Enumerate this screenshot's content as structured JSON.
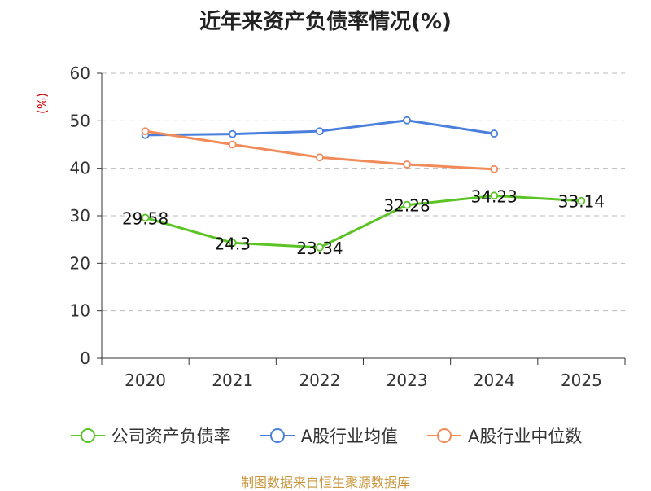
{
  "title": "近年来资产负债率情况(%)",
  "footer": "制图数据来自恒生聚源数据库",
  "chart_data": {
    "type": "line",
    "title": "近年来资产负债率情况(%)",
    "ylabel": "(%)",
    "xlabel": "",
    "ylim": [
      0,
      60
    ],
    "yticks": [
      "0",
      "10",
      "20",
      "30",
      "40",
      "50",
      "60"
    ],
    "categories": [
      "2020",
      "2021",
      "2022",
      "2023",
      "2024",
      "2025"
    ],
    "grid": true,
    "legend_position": "bottom",
    "series": [
      {
        "name": "公司资产负债率",
        "color": "#5ac425",
        "values": [
          29.58,
          24.3,
          23.34,
          32.28,
          34.23,
          33.14
        ],
        "labels": [
          "29.58",
          "24.3",
          "23.34",
          "32.28",
          "34.23",
          "33.14"
        ]
      },
      {
        "name": "A股行业均值",
        "color": "#4a7fdc",
        "values": [
          47.0,
          47.2,
          47.8,
          50.1,
          47.3,
          null
        ],
        "labels": []
      },
      {
        "name": "A股行业中位数",
        "color": "#f28b5a",
        "values": [
          47.8,
          45.0,
          42.3,
          40.8,
          39.8,
          null
        ],
        "labels": []
      }
    ]
  }
}
